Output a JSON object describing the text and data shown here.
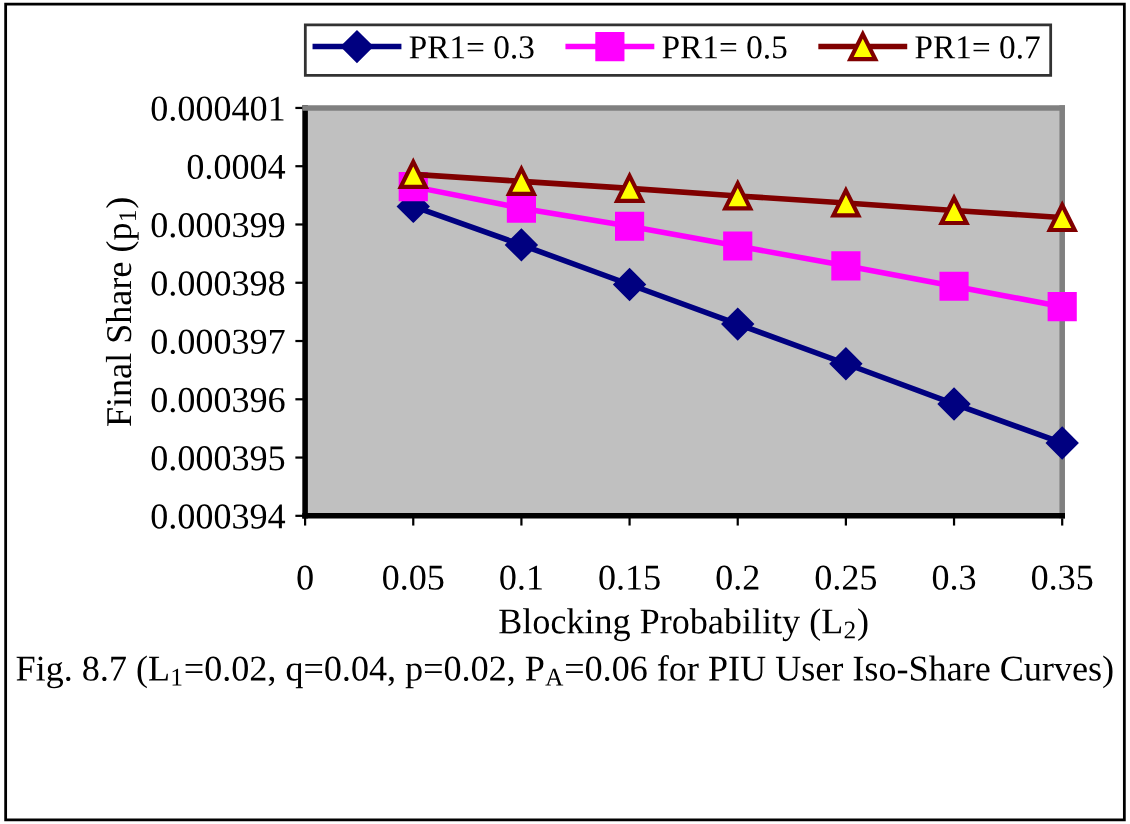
{
  "chart_data": {
    "type": "line",
    "xlabel": "Blocking Probability (L$_{2}$)",
    "ylabel": "Final Share (p$_{1}$)",
    "x": [
      0.05,
      0.1,
      0.15,
      0.2,
      0.25,
      0.3,
      0.35
    ],
    "series": [
      {
        "name": "PR1= 0.3",
        "color": "#000080",
        "marker": "diamond",
        "values": [
          0.00039931,
          0.00039865,
          0.00039797,
          0.00039729,
          0.00039661,
          0.00039592,
          0.00039525
        ]
      },
      {
        "name": "PR1= 0.5",
        "color": "#ff00ff",
        "marker": "square",
        "values": [
          0.00039965,
          0.00039928,
          0.00039897,
          0.00039863,
          0.00039829,
          0.00039794,
          0.00039759
        ]
      },
      {
        "name": "PR1= 0.7",
        "color": "#800000",
        "marker": "triangle",
        "values": [
          0.00039986,
          0.00039974,
          0.00039962,
          0.00039949,
          0.00039937,
          0.00039924,
          0.00039912
        ]
      }
    ],
    "xlim": [
      0,
      0.35
    ],
    "xticks": [
      0,
      0.05,
      0.1,
      0.15,
      0.2,
      0.25,
      0.3,
      0.35
    ],
    "ylim": [
      0.000394,
      0.000401
    ],
    "yticks": [
      0.000394,
      0.000395,
      0.000396,
      0.000397,
      0.000398,
      0.000399,
      0.0004,
      0.000401
    ],
    "grid": false,
    "legend": "top",
    "annotations": [
      "Fig. 8.7 (L$_{1}$=0.02, q=0.04, p=0.02, P$_{A}$=0.06 for PIU User Iso-Share Curves)"
    ]
  }
}
